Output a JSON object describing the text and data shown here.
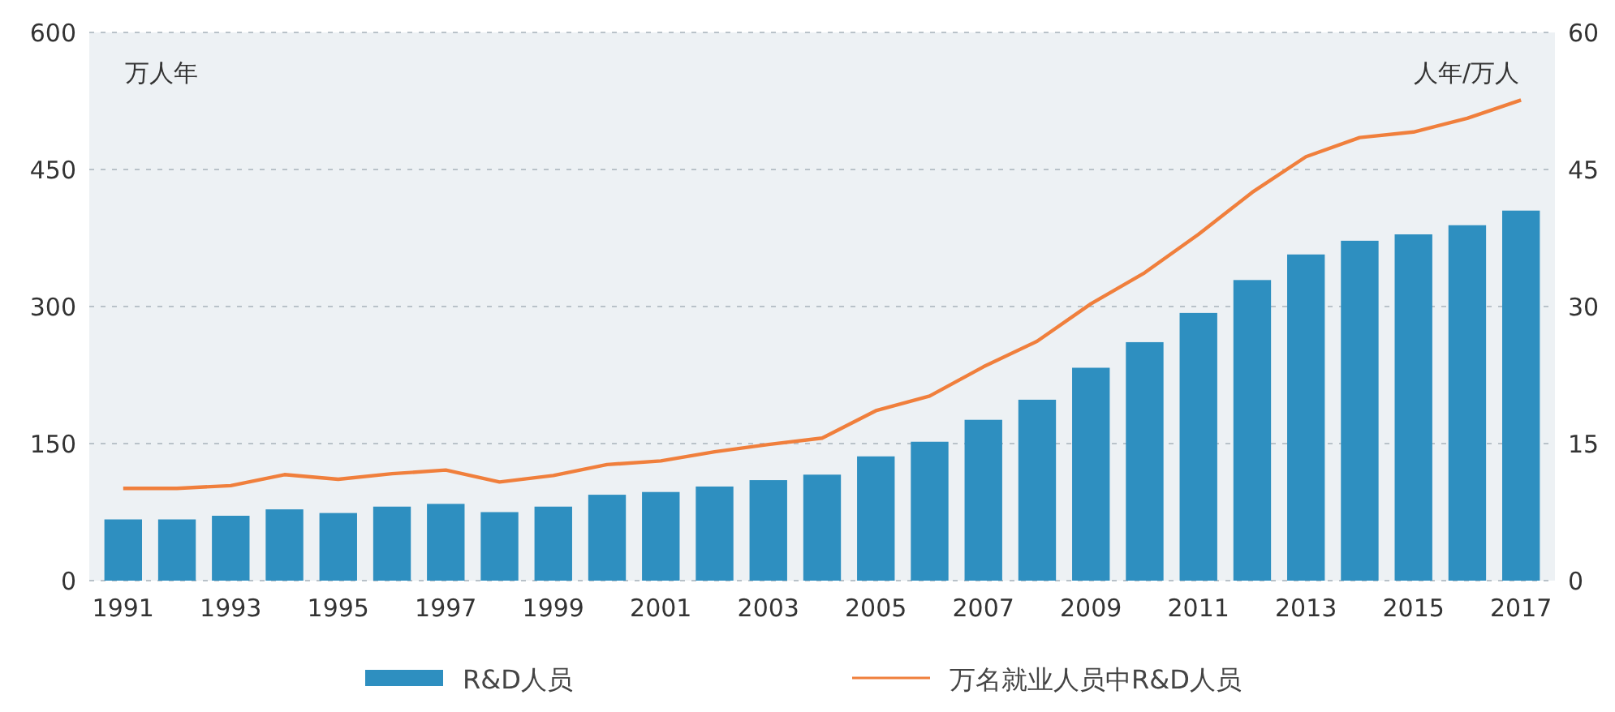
{
  "chart_data": {
    "type": "bar",
    "ylabel": "万人年",
    "y2label": "人年/万人",
    "categories": [
      "1991",
      null,
      "1993",
      null,
      "1995",
      null,
      "1997",
      null,
      "1999",
      null,
      "2001",
      null,
      "2003",
      null,
      "2005",
      null,
      "2007",
      null,
      "2009",
      null,
      "2011",
      null,
      "2013",
      null,
      "2015",
      null,
      "2017"
    ],
    "series": [
      {
        "name": "R&D人员",
        "color": "#2e8fc0",
        "values": [
          67,
          67,
          71,
          78,
          74,
          81,
          84,
          75,
          81,
          94,
          97,
          103,
          110,
          116,
          136,
          152,
          176,
          198,
          233,
          261,
          293,
          329,
          357,
          372,
          379,
          389,
          405
        ]
      },
      {
        "name": "万名就业人员中R&D人员",
        "type": "line",
        "axis": "y2",
        "color": "#f07f3c",
        "values": [
          10.1,
          10.1,
          10.4,
          11.6,
          11.1,
          11.7,
          12.1,
          10.8,
          11.5,
          12.7,
          13.1,
          14.1,
          14.9,
          15.6,
          18.6,
          20.2,
          23.4,
          26.2,
          30.3,
          33.7,
          37.9,
          42.5,
          46.4,
          48.5,
          49.1,
          50.6,
          52.6
        ]
      }
    ],
    "ylim": [
      0,
      600
    ],
    "yticks": [
      0,
      150,
      300,
      450,
      600
    ],
    "y2lim": [
      0,
      60
    ],
    "y2ticks": [
      0,
      15,
      30,
      45,
      60
    ],
    "grid": "y",
    "legend": "bottom",
    "line_style": "solid",
    "marker": "none"
  }
}
